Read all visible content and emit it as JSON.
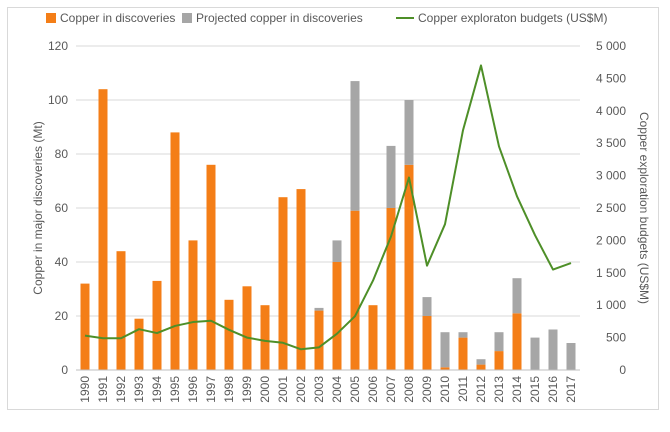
{
  "chart_data": {
    "type": "bar",
    "categories": [
      "1990",
      "1991",
      "1992",
      "1993",
      "1994",
      "1995",
      "1996",
      "1997",
      "1998",
      "1999",
      "2000",
      "2001",
      "2002",
      "2003",
      "2004",
      "2005",
      "2006",
      "2007",
      "2008",
      "2009",
      "2010",
      "2011",
      "2012",
      "2013",
      "2014",
      "2015",
      "2016",
      "2017"
    ],
    "series": [
      {
        "name": "Copper in discoveries",
        "kind": "bar-stack",
        "axis": "left",
        "color": "#f47e17",
        "values": [
          32,
          104,
          44,
          19,
          33,
          88,
          48,
          76,
          26,
          31,
          24,
          64,
          67,
          22,
          40,
          59,
          24,
          60,
          76,
          20,
          1,
          12,
          2,
          7,
          21,
          0,
          0,
          0
        ]
      },
      {
        "name": "Projected copper in discoveries",
        "kind": "bar-stack",
        "axis": "left",
        "color": "#a6a6a6",
        "values": [
          0,
          0,
          0,
          0,
          0,
          0,
          0,
          0,
          0,
          0,
          0,
          0,
          0,
          1,
          8,
          48,
          0,
          23,
          24,
          7,
          13,
          2,
          2,
          7,
          13,
          12,
          15,
          10
        ]
      },
      {
        "name": "Copper exploraton budgets (US$M)",
        "kind": "line",
        "axis": "right",
        "color": "#4e8f28",
        "values": [
          530,
          490,
          490,
          630,
          570,
          680,
          740,
          760,
          620,
          500,
          450,
          420,
          320,
          350,
          560,
          830,
          1380,
          2060,
          2970,
          1610,
          2250,
          3700,
          4700,
          3450,
          2680,
          2080,
          1550,
          1650
        ]
      }
    ],
    "ylabel": "Copper in major discoveries (Mt)",
    "y2label": "Copper exploration budgets (US$M)",
    "ylim": [
      0,
      120
    ],
    "y2lim": [
      0,
      5000
    ],
    "yticks": [
      "0",
      "20",
      "40",
      "60",
      "80",
      "100",
      "120"
    ],
    "y2ticks": [
      "0",
      "500",
      "1 000",
      "1 500",
      "2 000",
      "2 500",
      "3 000",
      "3 500",
      "4 000",
      "4 500",
      "5 000"
    ],
    "grid": "horizontal",
    "legend_position": "top",
    "legend": [
      {
        "label": "Copper in discoveries",
        "color": "#f47e17"
      },
      {
        "label": "Projected copper in discoveries",
        "color": "#a6a6a6"
      },
      {
        "label": "Copper exploraton budgets (US$M)",
        "color": "#4e8f28"
      }
    ]
  }
}
